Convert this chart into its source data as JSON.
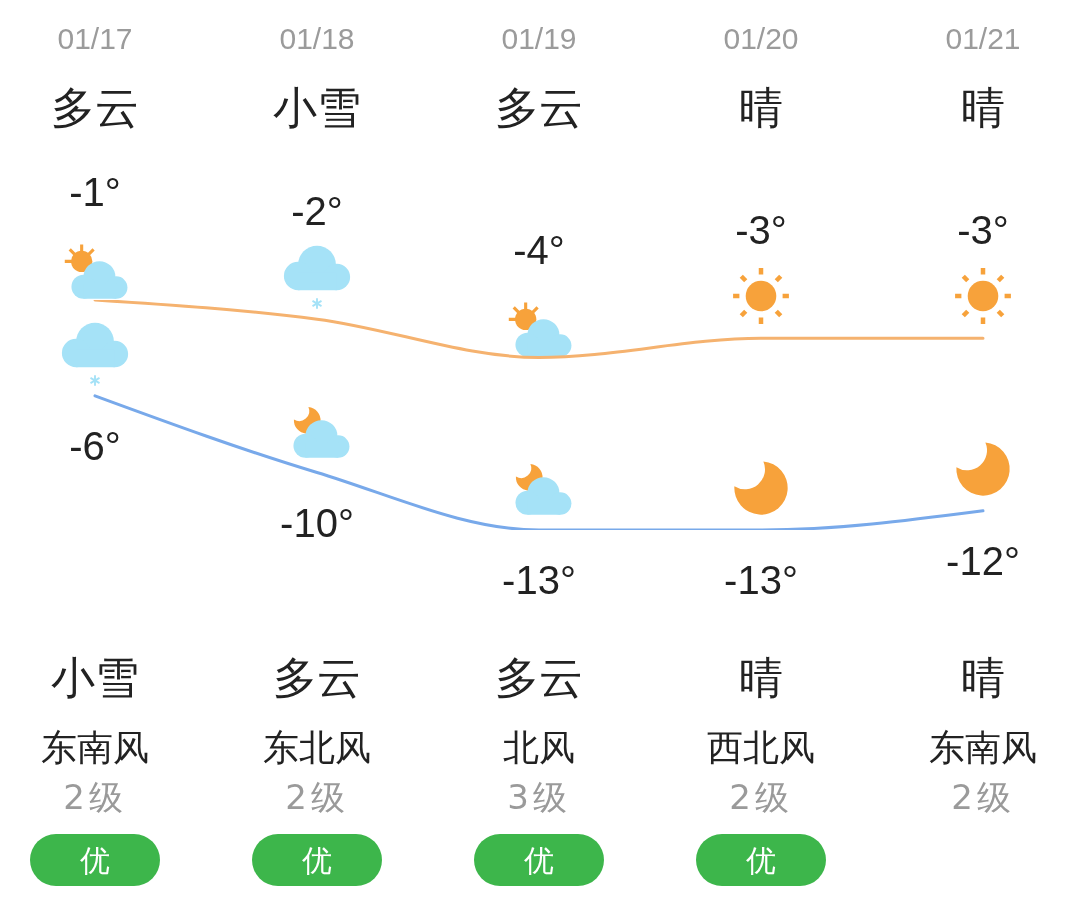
{
  "chart_data": {
    "type": "line",
    "categories": [
      "01/17",
      "01/18",
      "01/19",
      "01/20",
      "01/21"
    ],
    "series": [
      {
        "color": "#f5b26f",
        "values": [
          -1,
          -2,
          -4,
          -3,
          -3
        ],
        "value_labels": [
          "-1°",
          "-2°",
          "-4°",
          "-3°",
          "-3°"
        ]
      },
      {
        "color": "#78a9ea",
        "values": [
          -6,
          -10,
          -13,
          -13,
          -12
        ],
        "value_labels": [
          "-6°",
          "-10°",
          "-13°",
          "-13°",
          "-12°"
        ]
      }
    ],
    "tick_labels": "x",
    "annotations": [
      "多云",
      "小雪",
      "多云",
      "晴",
      "晴",
      "小雪",
      "多云",
      "多云",
      "晴",
      "晴",
      "东南风",
      "东北风",
      "北风",
      "西北风",
      "东南风",
      "2级",
      "2级",
      "3级",
      "2级",
      "2级",
      "优",
      "优",
      "优",
      "优"
    ]
  }
}
